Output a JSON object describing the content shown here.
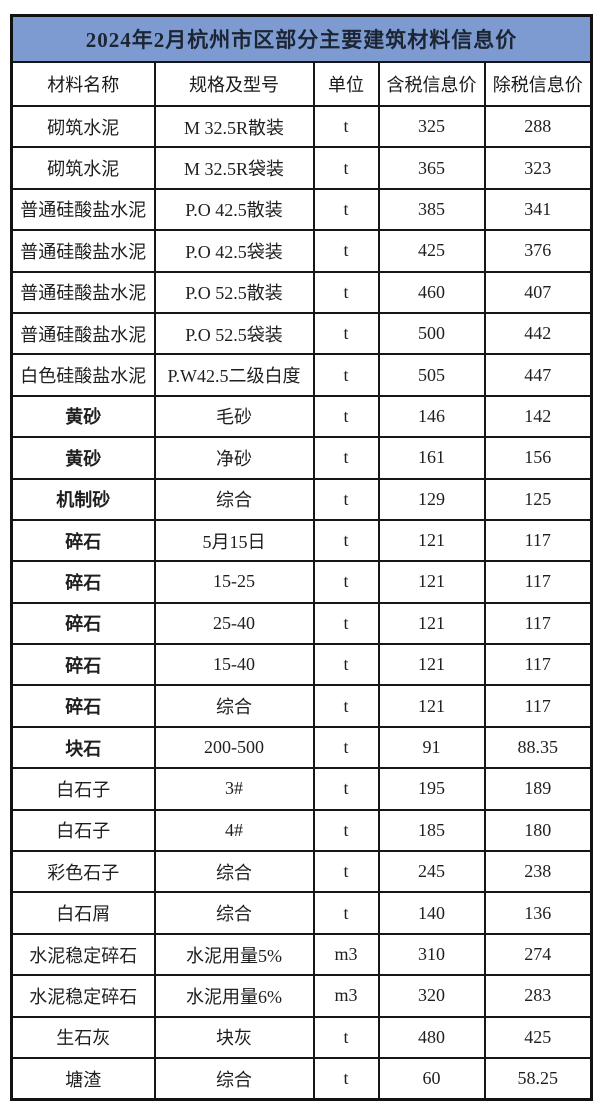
{
  "title": "2024年2月杭州市区部分主要建筑材料信息价",
  "columns": [
    "材料名称",
    "规格及型号",
    "单位",
    "含税信息价",
    "除税信息价"
  ],
  "colors": {
    "title_background": "#7e9bd1",
    "title_text": "#1c2533",
    "highlight_name_red": "#ce2b24",
    "highlight_price_green": "#2fa377",
    "border_black": "#161616",
    "body_text": "#1f1f1f"
  },
  "rows": [
    {
      "name": "砌筑水泥",
      "spec": "M 32.5R散装",
      "unit": "t",
      "price_with_tax": "325",
      "price_without_tax": "288",
      "highlight": false
    },
    {
      "name": "砌筑水泥",
      "spec": "M 32.5R袋装",
      "unit": "t",
      "price_with_tax": "365",
      "price_without_tax": "323",
      "highlight": false
    },
    {
      "name": "普通硅酸盐水泥",
      "spec": "P.O 42.5散装",
      "unit": "t",
      "price_with_tax": "385",
      "price_without_tax": "341",
      "highlight": false
    },
    {
      "name": "普通硅酸盐水泥",
      "spec": "P.O 42.5袋装",
      "unit": "t",
      "price_with_tax": "425",
      "price_without_tax": "376",
      "highlight": false
    },
    {
      "name": "普通硅酸盐水泥",
      "spec": "P.O 52.5散装",
      "unit": "t",
      "price_with_tax": "460",
      "price_without_tax": "407",
      "highlight": false
    },
    {
      "name": "普通硅酸盐水泥",
      "spec": "P.O 52.5袋装",
      "unit": "t",
      "price_with_tax": "500",
      "price_without_tax": "442",
      "highlight": false
    },
    {
      "name": "白色硅酸盐水泥",
      "spec": "P.W42.5二级白度",
      "unit": "t",
      "price_with_tax": "505",
      "price_without_tax": "447",
      "highlight": false
    },
    {
      "name": "黄砂",
      "spec": "毛砂",
      "unit": "t",
      "price_with_tax": "146",
      "price_without_tax": "142",
      "highlight": true
    },
    {
      "name": "黄砂",
      "spec": "净砂",
      "unit": "t",
      "price_with_tax": "161",
      "price_without_tax": "156",
      "highlight": true
    },
    {
      "name": "机制砂",
      "spec": "综合",
      "unit": "t",
      "price_with_tax": "129",
      "price_without_tax": "125",
      "highlight": true
    },
    {
      "name": "碎石",
      "spec": "5月15日",
      "unit": "t",
      "price_with_tax": "121",
      "price_without_tax": "117",
      "highlight": true
    },
    {
      "name": "碎石",
      "spec": "15-25",
      "unit": "t",
      "price_with_tax": "121",
      "price_without_tax": "117",
      "highlight": true
    },
    {
      "name": "碎石",
      "spec": "25-40",
      "unit": "t",
      "price_with_tax": "121",
      "price_without_tax": "117",
      "highlight": true
    },
    {
      "name": "碎石",
      "spec": "15-40",
      "unit": "t",
      "price_with_tax": "121",
      "price_without_tax": "117",
      "highlight": true
    },
    {
      "name": "碎石",
      "spec": "综合",
      "unit": "t",
      "price_with_tax": "121",
      "price_without_tax": "117",
      "highlight": true
    },
    {
      "name": "块石",
      "spec": "200-500",
      "unit": "t",
      "price_with_tax": "91",
      "price_without_tax": "88.35",
      "highlight": true
    },
    {
      "name": "白石子",
      "spec": "3#",
      "unit": "t",
      "price_with_tax": "195",
      "price_without_tax": "189",
      "highlight": false
    },
    {
      "name": "白石子",
      "spec": "4#",
      "unit": "t",
      "price_with_tax": "185",
      "price_without_tax": "180",
      "highlight": false
    },
    {
      "name": "彩色石子",
      "spec": "综合",
      "unit": "t",
      "price_with_tax": "245",
      "price_without_tax": "238",
      "highlight": false
    },
    {
      "name": "白石屑",
      "spec": "综合",
      "unit": "t",
      "price_with_tax": "140",
      "price_without_tax": "136",
      "highlight": false
    },
    {
      "name": "水泥稳定碎石",
      "spec": "水泥用量5%",
      "unit": "m3",
      "price_with_tax": "310",
      "price_without_tax": "274",
      "highlight": false
    },
    {
      "name": "水泥稳定碎石",
      "spec": "水泥用量6%",
      "unit": "m3",
      "price_with_tax": "320",
      "price_without_tax": "283",
      "highlight": false
    },
    {
      "name": "生石灰",
      "spec": "块灰",
      "unit": "t",
      "price_with_tax": "480",
      "price_without_tax": "425",
      "highlight": false
    },
    {
      "name": "塘渣",
      "spec": "综合",
      "unit": "t",
      "price_with_tax": "60",
      "price_without_tax": "58.25",
      "highlight": false
    }
  ]
}
